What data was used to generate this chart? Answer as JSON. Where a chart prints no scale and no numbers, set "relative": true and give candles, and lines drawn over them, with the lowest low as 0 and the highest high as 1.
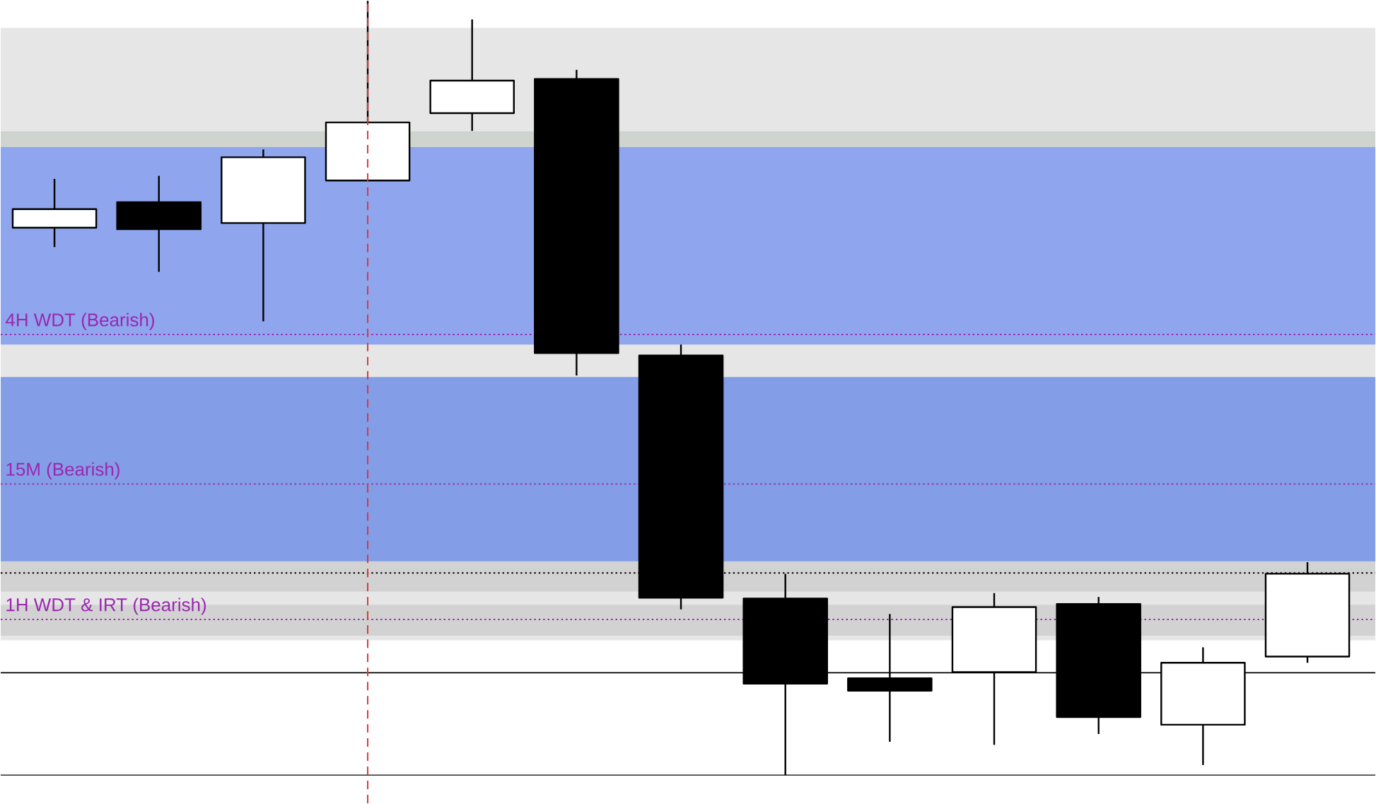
{
  "chart_data": {
    "type": "candlestick",
    "relative": true,
    "categories": [
      null,
      null,
      null,
      null,
      null,
      null,
      null,
      null,
      null,
      null,
      null,
      null,
      null
    ],
    "ohlc": [
      [
        0.707,
        0.77,
        0.682,
        0.731
      ],
      [
        0.74,
        0.774,
        0.65,
        0.705
      ],
      [
        0.713,
        0.808,
        0.586,
        0.798
      ],
      [
        0.768,
        1,
        0.767,
        0.843
      ],
      [
        0.855,
        0.976,
        0.832,
        0.897
      ],
      [
        0.899,
        0.911,
        0.516,
        0.545
      ],
      [
        0.542,
        0.556,
        0.214,
        0.229
      ],
      [
        0.228,
        0.26,
        0,
        0.118
      ],
      [
        0.125,
        0.208,
        0.043,
        0.109
      ],
      [
        0.133,
        0.235,
        0.039,
        0.217
      ],
      [
        0.221,
        0.23,
        0.053,
        0.075
      ],
      [
        0.065,
        0.165,
        0.013,
        0.145
      ],
      [
        0.153,
        0.275,
        0.145,
        0.26
      ]
    ],
    "bands": [
      {
        "axis": "y",
        "from": 0.174,
        "to": 0.965,
        "color": "#e6e6e6"
      },
      {
        "axis": "y",
        "from": 0.556,
        "to": 0.831,
        "color": "#8fa5ee"
      },
      {
        "axis": "y",
        "from": 0.811,
        "to": 0.831,
        "color": "#cfd4cf"
      },
      {
        "axis": "y",
        "from": 0.237,
        "to": 0.514,
        "color": "#d2d2d2"
      },
      {
        "axis": "y",
        "from": 0.276,
        "to": 0.514,
        "color": "#839de6"
      },
      {
        "axis": "y",
        "from": 0.18,
        "to": 0.22,
        "color": "#d2d2d2"
      }
    ],
    "ref_lines": [
      {
        "axis": "y",
        "value": 0.569,
        "label": "4H WDT (Bearish)",
        "color": "#9c27b0",
        "line_style": "dotted"
      },
      {
        "axis": "y",
        "value": 0.376,
        "label": "15M (Bearish)",
        "color": "#9c27b0",
        "line_style": "dotted"
      },
      {
        "axis": "y",
        "value": 0.201,
        "label": "1H WDT & IRT (Bearish)",
        "color": "#9c27b0",
        "line_style": "dotted"
      },
      {
        "axis": "y",
        "value": 0.261,
        "color": "#000000",
        "line_style": "dotted"
      },
      {
        "axis": "y",
        "value": 0.132,
        "color": "#000000",
        "line_style": "solid"
      }
    ]
  }
}
